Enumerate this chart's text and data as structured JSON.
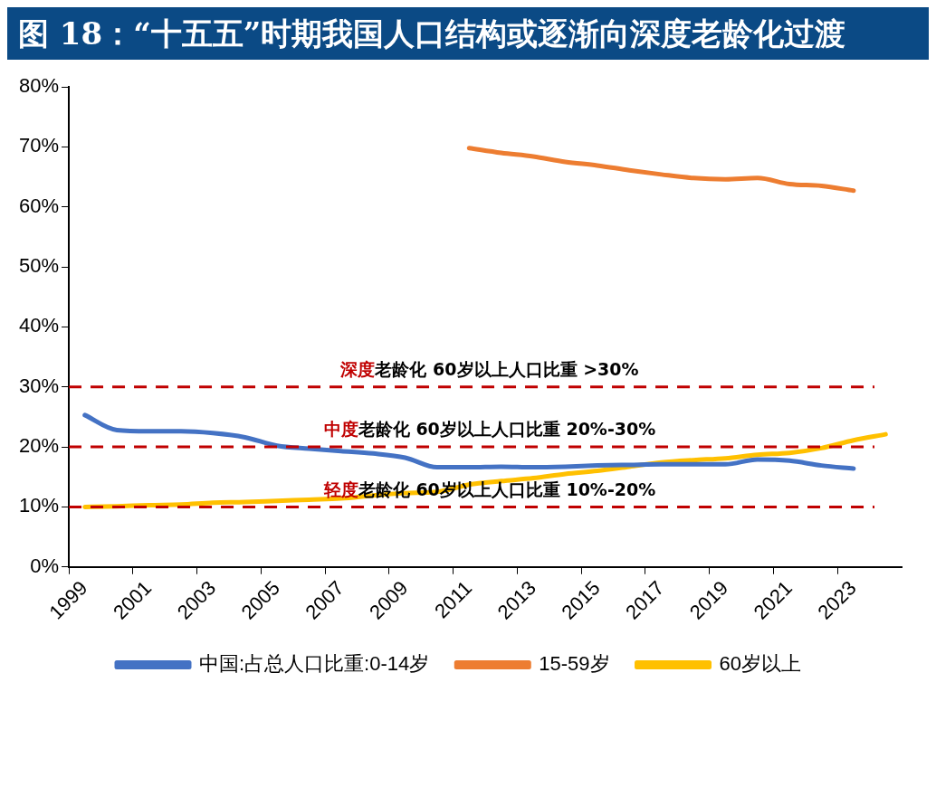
{
  "chart_data": {
    "type": "line",
    "title": "图 18：“十五五”时期我国人口结构或逐渐向深度老龄化过渡",
    "categories": [
      "1999",
      null,
      "2001",
      null,
      "2003",
      null,
      "2005",
      null,
      "2007",
      null,
      "2009",
      null,
      "2011",
      null,
      "2013",
      null,
      "2015",
      null,
      "2017",
      null,
      "2019",
      null,
      "2021",
      null,
      "2023",
      null
    ],
    "series": [
      {
        "name": "中国:占总人口比重:0-14岁",
        "color": "#4472c4",
        "values": [
          25.3,
          22.8,
          22.6,
          22.6,
          22.3,
          21.6,
          20.2,
          19.7,
          19.3,
          18.9,
          18.2,
          16.6,
          16.6,
          16.7,
          16.6,
          16.7,
          16.9,
          17.0,
          17.1,
          17.1,
          17.1,
          17.9,
          17.7,
          16.9,
          16.4,
          null
        ]
      },
      {
        "name": "15-59岁",
        "color": "#ed7d31",
        "values": [
          null,
          null,
          null,
          null,
          null,
          null,
          null,
          null,
          null,
          null,
          null,
          null,
          69.8,
          69.0,
          68.4,
          67.5,
          66.9,
          66.1,
          65.4,
          64.8,
          64.6,
          64.8,
          63.8,
          63.5,
          62.7,
          null
        ]
      },
      {
        "name": "60岁以上",
        "color": "#ffc000",
        "values": [
          10.0,
          10.1,
          10.3,
          10.4,
          10.7,
          10.8,
          11.0,
          11.2,
          11.4,
          11.9,
          12.3,
          12.5,
          13.7,
          14.3,
          14.8,
          15.5,
          16.0,
          16.7,
          17.4,
          17.8,
          18.1,
          18.7,
          19.0,
          19.8,
          21.1,
          22.1
        ]
      }
    ],
    "ylim": [
      0,
      80
    ],
    "yticks": [
      {
        "value": 0,
        "label": "0%"
      },
      {
        "value": 10,
        "label": "10%"
      },
      {
        "value": 20,
        "label": "20%"
      },
      {
        "value": 30,
        "label": "30%"
      },
      {
        "value": 40,
        "label": "40%"
      },
      {
        "value": 50,
        "label": "50%"
      },
      {
        "value": 60,
        "label": "60%"
      },
      {
        "value": 70,
        "label": "70%"
      },
      {
        "value": 80,
        "label": "80%"
      }
    ],
    "ref_lines": [
      {
        "axis": "y",
        "value": 30,
        "label": "深度老龄化 60岁以上人口比重 >30%",
        "color": "#c00000",
        "line_style": "dashed"
      },
      {
        "axis": "y",
        "value": 20,
        "label": "中度老龄化 60岁以上人口比重 20%-30%",
        "color": "#c00000",
        "line_style": "dashed"
      },
      {
        "axis": "y",
        "value": 10,
        "label": "轻度老龄化 60岁以上人口比重 10%-20%",
        "color": "#c00000",
        "line_style": "dashed"
      }
    ],
    "grid": false,
    "legend": "bottom",
    "marker": "none",
    "line_style": "solid"
  }
}
